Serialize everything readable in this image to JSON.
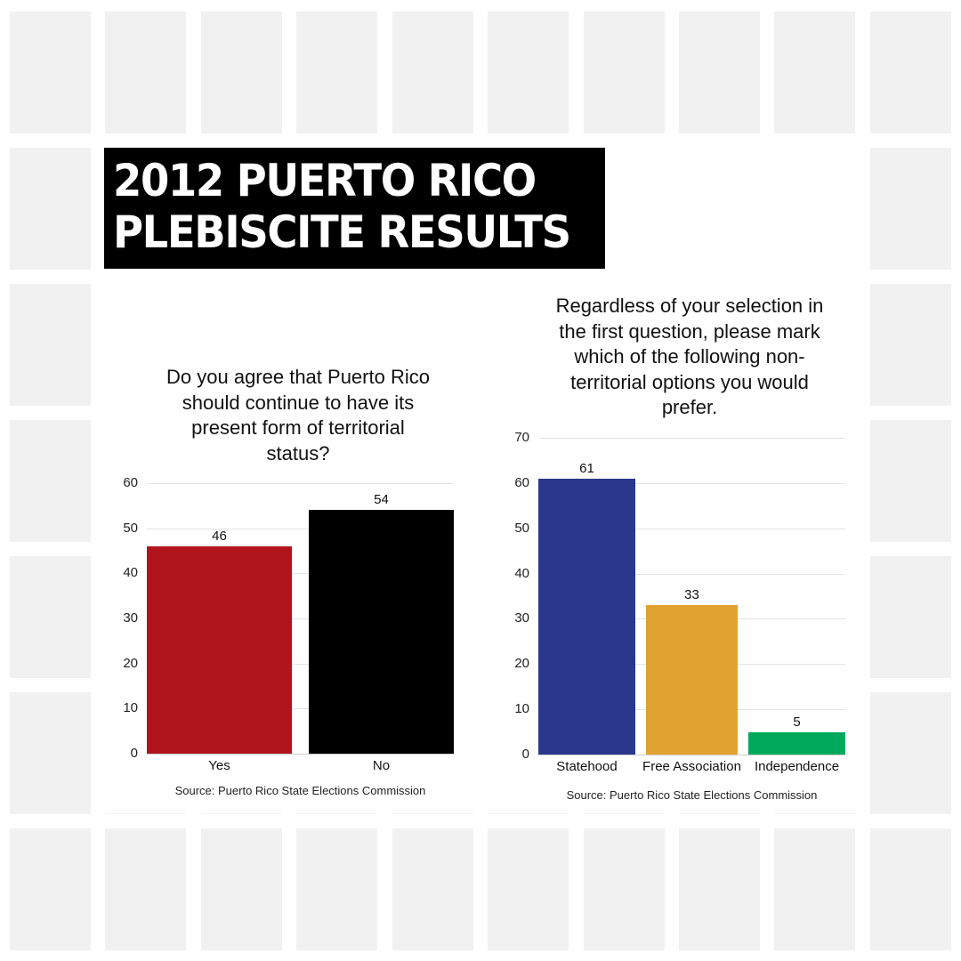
{
  "header": {
    "title_lines": [
      "2012 PUERTO RICO",
      "PLEBISCITE RESULTS"
    ]
  },
  "colors": {
    "tile": "#f1f1f1",
    "title_bg": "#000000",
    "yes": "#b0151e",
    "no": "#000000",
    "statehood": "#29388c",
    "free_association": "#e0a230",
    "independence": "#00a95c"
  },
  "chart_data": [
    {
      "type": "bar",
      "title": "Do you agree that Puerto Rico should continue to have its present form of territorial status?",
      "title_lines": [
        "Do you agree that Puerto Rico",
        "should continue to have its",
        "present form of territorial",
        "status?"
      ],
      "categories": [
        "Yes",
        "No"
      ],
      "values": [
        46,
        54
      ],
      "colors": [
        "#b0151e",
        "#000000"
      ],
      "yticks": [
        0,
        10,
        20,
        30,
        40,
        50,
        60
      ],
      "ylim": [
        0,
        60
      ],
      "xlabel": "",
      "ylabel": "",
      "grid": true,
      "legend": "none",
      "source": "Source: Puerto Rico State Elections Commission"
    },
    {
      "type": "bar",
      "title": "Regardless of your selection in the first question, please mark which of the following non-territorial options you would prefer.",
      "title_lines": [
        "Regardless of your selection in",
        "the first question, please mark",
        "which of the following non-",
        "territorial options you would",
        "prefer."
      ],
      "categories": [
        "Statehood",
        "Free Association",
        "Independence"
      ],
      "values": [
        61,
        33,
        5
      ],
      "colors": [
        "#29388c",
        "#e0a230",
        "#00a95c"
      ],
      "yticks": [
        0,
        10,
        20,
        30,
        40,
        50,
        60,
        70
      ],
      "ylim": [
        0,
        70
      ],
      "xlabel": "",
      "ylabel": "",
      "grid": true,
      "legend": "none",
      "source": "Source: Puerto Rico State Elections Commission"
    }
  ]
}
